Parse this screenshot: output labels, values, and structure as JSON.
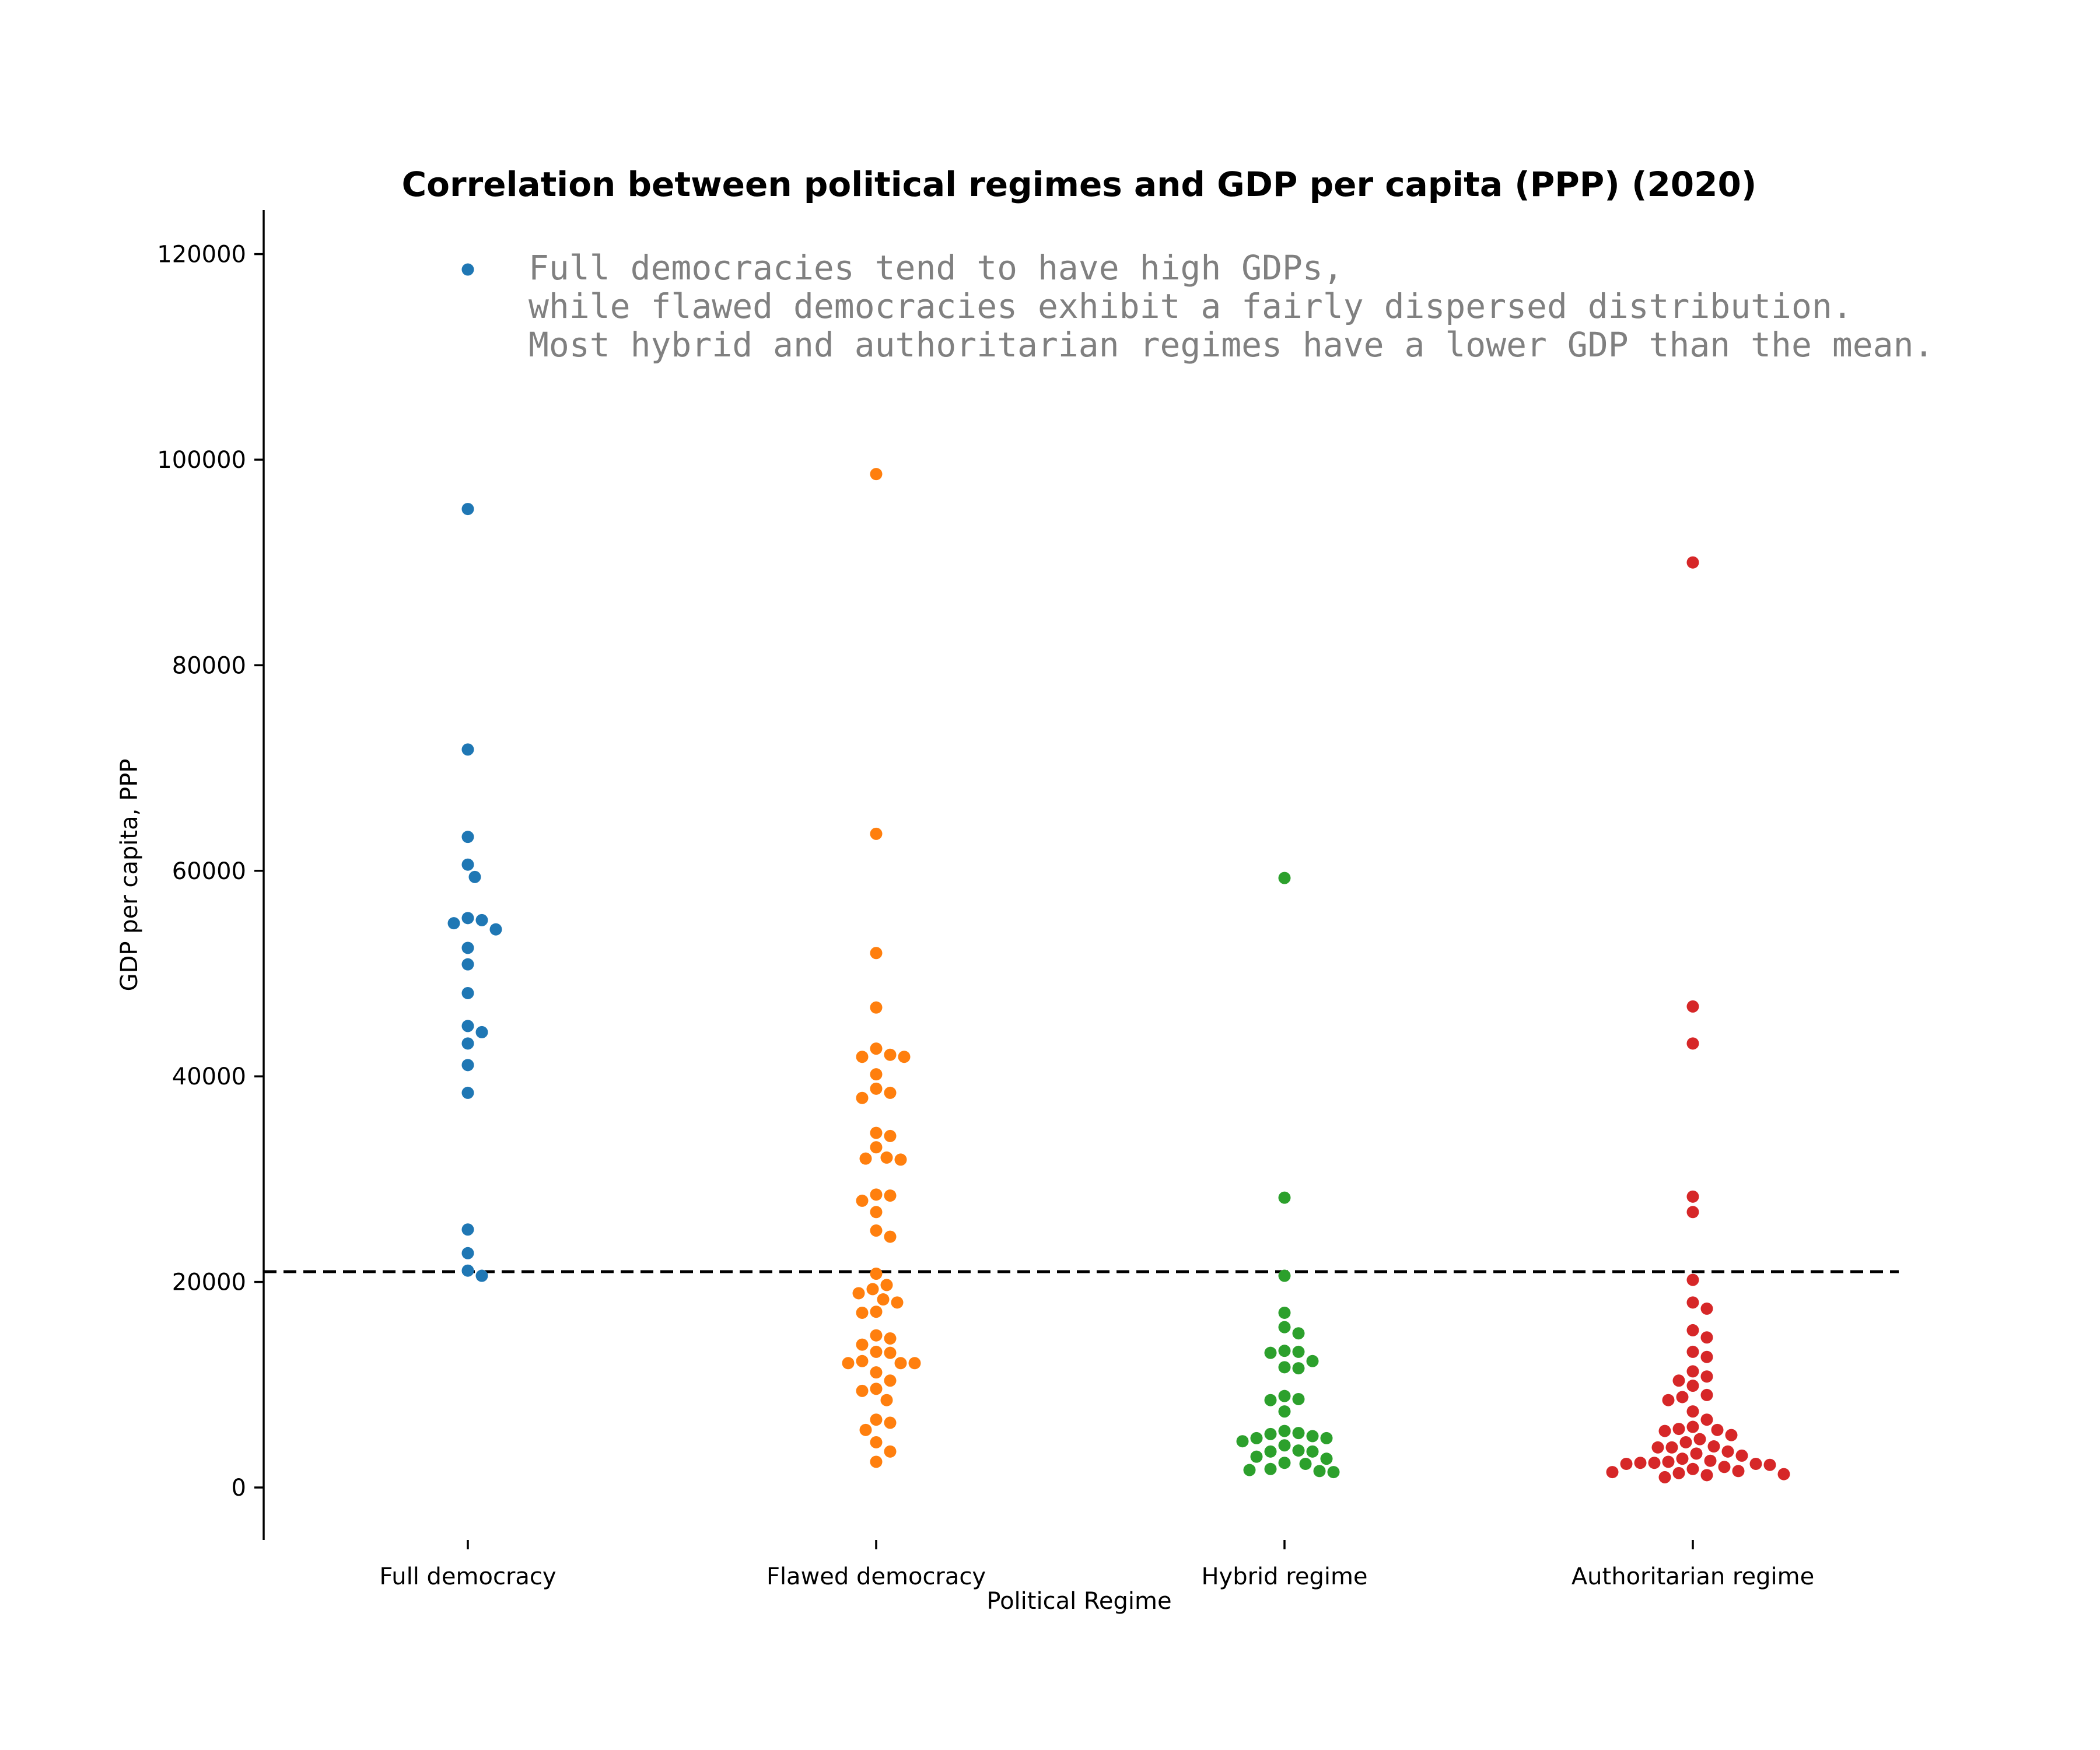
{
  "chart_data": {
    "type": "scatter",
    "subtype": "swarm",
    "title": "Correlation between political regimes and GDP per capita (PPP) (2020)",
    "xlabel": "Political Regime",
    "ylabel": "GDP per capita, PPP",
    "ylim": [
      -5000,
      124000
    ],
    "yticks": [
      0,
      20000,
      40000,
      60000,
      80000,
      100000,
      120000
    ],
    "grid": false,
    "legend": "none",
    "annotation": [
      "Full democracies tend to have high GDPs,",
      "while flawed democracies exhibit a fairly dispersed distribution.",
      "Most hybrid and authoritarian regimes have a lower GDP than the mean."
    ],
    "mean_line": {
      "value": 21000,
      "style": "dashed",
      "color": "#000000"
    },
    "categories": [
      "Full democracy",
      "Flawed democracy",
      "Hybrid regime",
      "Authoritarian regime"
    ],
    "series": [
      {
        "category": "Full democracy",
        "color": "#1f77b4",
        "values": [
          118500,
          95200,
          71800,
          63300,
          60600,
          59400,
          55400,
          55200,
          54900,
          54300,
          52500,
          50900,
          48100,
          44900,
          44300,
          43200,
          41100,
          38400,
          25100,
          22800,
          21100,
          20600
        ]
      },
      {
        "category": "Flawed democracy",
        "color": "#ff7f0e",
        "values": [
          98600,
          63600,
          52000,
          46700,
          42700,
          42100,
          41900,
          41900,
          40200,
          38800,
          38400,
          37900,
          34500,
          34200,
          33100,
          32100,
          32000,
          31900,
          28500,
          28400,
          27900,
          26800,
          25000,
          24400,
          20800,
          19700,
          19300,
          18900,
          18300,
          18000,
          17100,
          17000,
          14800,
          14500,
          13900,
          13200,
          13100,
          12300,
          12100,
          12100,
          12100,
          11200,
          10400,
          9600,
          9400,
          8500,
          6600,
          6300,
          5600,
          4400,
          3500,
          2500
        ]
      },
      {
        "category": "Hybrid regime",
        "color": "#2ca02c",
        "values": [
          59300,
          28200,
          20600,
          17000,
          15600,
          15000,
          13300,
          13200,
          13100,
          12300,
          11700,
          11600,
          8900,
          8600,
          8500,
          7400,
          5500,
          5300,
          5200,
          5000,
          4800,
          4800,
          4500,
          4100,
          3600,
          3500,
          3500,
          3000,
          2800,
          2400,
          2300,
          1800,
          1700,
          1600,
          1500
        ]
      },
      {
        "category": "Authoritarian regime",
        "color": "#d62728",
        "values": [
          90000,
          46800,
          43200,
          28300,
          26800,
          20200,
          18000,
          17400,
          15300,
          14600,
          13200,
          12700,
          11300,
          10800,
          10400,
          9900,
          9000,
          8800,
          8500,
          7400,
          6600,
          5900,
          5700,
          5600,
          5500,
          5100,
          4700,
          4400,
          4000,
          3900,
          3900,
          3500,
          3300,
          3100,
          2800,
          2600,
          2500,
          2400,
          2400,
          2300,
          2300,
          2200,
          2000,
          1800,
          1600,
          1500,
          1400,
          1300,
          1200,
          1000
        ]
      }
    ]
  }
}
